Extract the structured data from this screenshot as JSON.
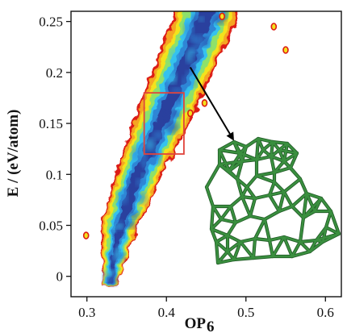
{
  "chart_data": {
    "type": "heatmap",
    "title": "",
    "xlabel": "OP",
    "xlabel_subscript": "6",
    "ylabel": "E / (eV/atom)",
    "xlim": [
      0.28,
      0.62
    ],
    "ylim": [
      -0.02,
      0.26
    ],
    "x_ticks": [
      0.3,
      0.4,
      0.5,
      0.6
    ],
    "x_tick_labels": [
      "0.3",
      "0.4",
      "0.5",
      "0.6"
    ],
    "y_ticks": [
      0,
      0.05,
      0.1,
      0.15,
      0.2,
      0.25
    ],
    "y_tick_labels": [
      "0",
      "0.05",
      "0.1",
      "0.15",
      "0.2",
      "0.25"
    ],
    "grid": false,
    "colormap": [
      "#dc1c13",
      "#f5a623",
      "#f3e21d",
      "#8ee16a",
      "#35c2ee",
      "#2f86d6",
      "#2b3f9e"
    ],
    "density_band": {
      "ridge": [
        {
          "E": -0.01,
          "OP": 0.328
        },
        {
          "E": 0.05,
          "OP": 0.342
        },
        {
          "E": 0.1,
          "OP": 0.365
        },
        {
          "E": 0.15,
          "OP": 0.393
        },
        {
          "E": 0.2,
          "OP": 0.42
        },
        {
          "E": 0.25,
          "OP": 0.447
        },
        {
          "E": 0.26,
          "OP": 0.452
        }
      ],
      "half_width_OP": [
        {
          "E": -0.01,
          "value": 0.008
        },
        {
          "E": 0.05,
          "value": 0.024
        },
        {
          "E": 0.15,
          "value": 0.036
        },
        {
          "E": 0.26,
          "value": 0.042
        }
      ]
    },
    "highlight_box": {
      "OP_range": [
        0.372,
        0.422
      ],
      "E_range": [
        0.12,
        0.18
      ],
      "color": "#e0443c"
    },
    "arrow": {
      "from": {
        "OP": 0.43,
        "E": 0.205
      },
      "to": {
        "OP": 0.485,
        "E": 0.133
      },
      "color": "#000000"
    },
    "inset": {
      "description": "green cluster structure",
      "color": "#3a8f3f"
    }
  }
}
